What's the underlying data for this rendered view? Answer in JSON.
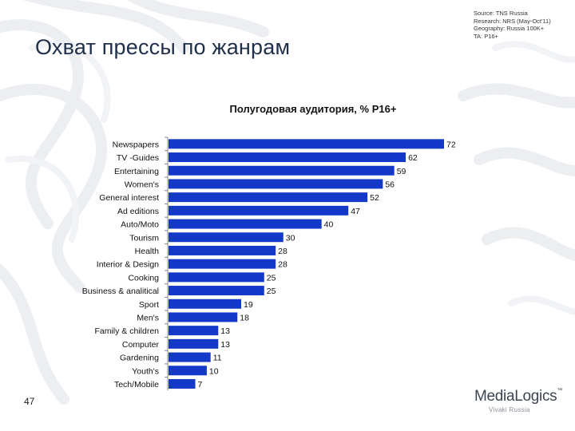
{
  "slide": {
    "title": "Охват прессы по жанрам",
    "page_number": "47"
  },
  "source_note": [
    "Source: TNS Russia",
    "Research: NRS (May-Oct'11)",
    "Geography: Russia 100K+",
    "TA: P16+"
  ],
  "logo": {
    "name": "MediaLogics",
    "trademark": "™",
    "subtitle": "Vivaki Russia"
  },
  "colors": {
    "bar": "#1438c8",
    "title": "#1f2f4a",
    "background_art": "#eef0f3"
  },
  "chart_data": {
    "type": "bar",
    "orientation": "horizontal",
    "title": "Полугодовая аудитория, % P16+",
    "categories": [
      "Newspapers",
      "TV -Guides",
      "Entertaining",
      "Women's",
      "General interest",
      "Ad editions",
      "Auto/Moto",
      "Tourism",
      "Health",
      "Interior & Design",
      "Cooking",
      "Business & analitical",
      "Sport",
      "Men's",
      "Family & children",
      "Computer",
      "Gardening",
      "Youth's",
      "Tech/Mobile"
    ],
    "values": [
      72,
      62,
      59,
      56,
      52,
      47,
      40,
      30,
      28,
      28,
      25,
      25,
      19,
      18,
      13,
      13,
      11,
      10,
      7
    ],
    "value_labels": [
      "72",
      "62",
      "59",
      "56",
      "52",
      "47",
      "40",
      "30",
      "28",
      "28",
      "25",
      "25",
      "19",
      "18",
      "13",
      "13",
      "11",
      "10",
      "7"
    ],
    "xlim": [
      0,
      72
    ],
    "grid": false,
    "legend": "none"
  }
}
